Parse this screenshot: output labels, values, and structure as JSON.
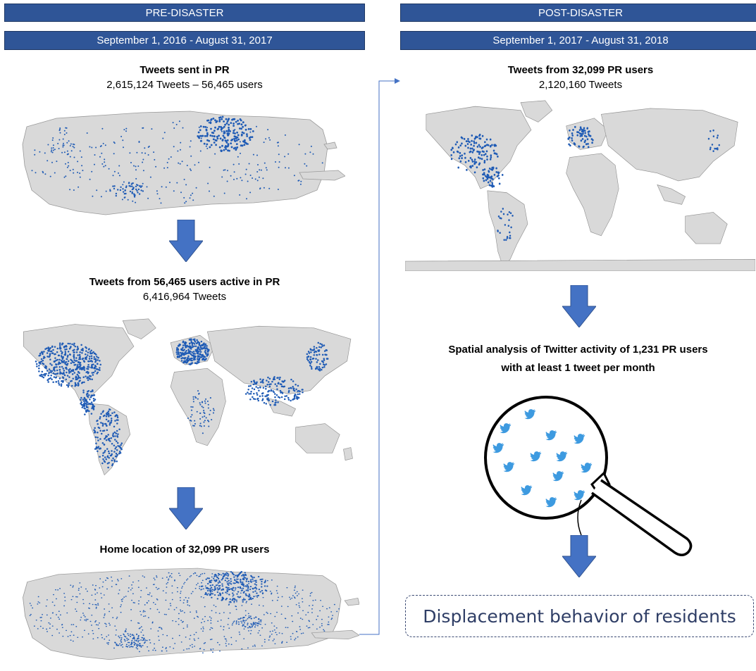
{
  "left": {
    "header": "PRE-DISASTER",
    "period": "September 1, 2016 - August 31, 2017",
    "step1_title": "Tweets sent in PR",
    "step1_stats": "2,615,124 Tweets – 56,465 users",
    "step2_title": "Tweets from 56,465 users active in PR",
    "step2_stats": "6,416,964 Tweets",
    "step3_title": "Home location of 32,099 PR users"
  },
  "right": {
    "header": "POST-DISASTER",
    "period": "September 1, 2017 - August 31, 2018",
    "step1_title": "Tweets from 32,099 PR users",
    "step1_stats": "2,120,160 Tweets",
    "analysis_line1": "Spatial analysis of Twitter activity of 1,231 PR users",
    "analysis_line2": "with at least 1 tweet per month",
    "result": "Displacement behavior of residents"
  },
  "colors": {
    "header_bar": "#2f5597",
    "arrow": "#4472c4",
    "map_land": "#d9d9d9",
    "tweet_dots": "#1f5bb5",
    "bird": "#3d9ae0"
  },
  "icons": [
    "down-arrow-icon",
    "magnifier-icon",
    "twitter-bird-icon",
    "connector-arrow-icon"
  ]
}
